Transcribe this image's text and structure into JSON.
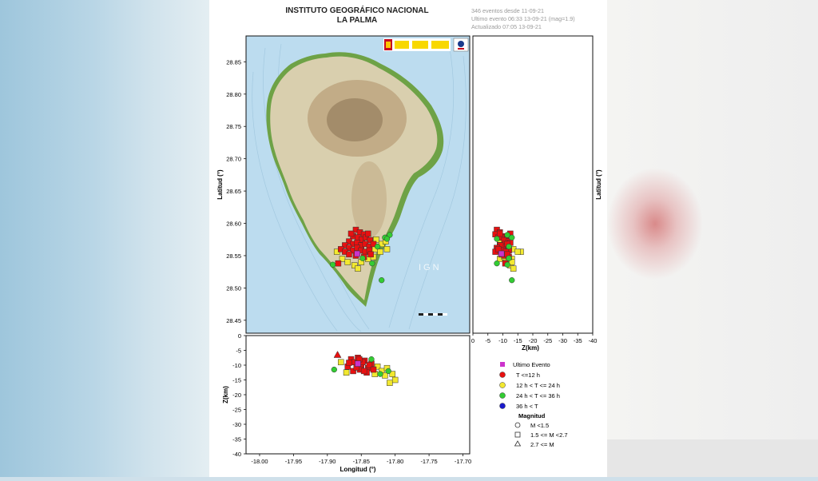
{
  "header": {
    "title_line1": "INSTITUTO GEOGRÁFICO NACIONAL",
    "title_line2": "LA PALMA",
    "info_line1": "346 eventos desde 11-09-21",
    "info_line2": "Ultimo evento 06:33 13-09-21  (mag=1.9)",
    "info_line3": "Actualizado   07:05  13-09-21"
  },
  "map": {
    "watermark": "IGN",
    "ocean_color": "#bcdcef",
    "land_color": "#d9cfae",
    "coast_color": "#6ea246"
  },
  "legend": {
    "ultimo_evento": "Ultimo Evento",
    "t1": "T <=12 h",
    "t2": "12 h  < T <= 24 h",
    "t3": "24 h  < T <= 36 h",
    "t4": "36 h <  T",
    "magnitud_title": "Magnitud",
    "m1": "M <1.5",
    "m2": "1.5 <= M <2.7",
    "m3": "2.7 <= M",
    "colors": {
      "ultimo": "#cc33cc",
      "t1": "#e81010",
      "t2": "#f2e830",
      "t3": "#33cc33",
      "t4": "#1a1acc"
    }
  },
  "chart_data": [
    {
      "type": "scatter",
      "name": "map",
      "xlabel": "",
      "ylabel": "Latitud (°)",
      "xlim": [
        -18.02,
        -17.69
      ],
      "ylim": [
        28.43,
        28.89
      ],
      "yticks": [
        "28.85",
        "28.80",
        "28.75",
        "28.70",
        "28.65",
        "28.60",
        "28.55",
        "28.50",
        "28.45"
      ],
      "ytick_values": [
        28.85,
        28.8,
        28.75,
        28.7,
        28.65,
        28.6,
        28.55,
        28.5,
        28.45
      ],
      "points_t1": [
        [
          -17.858,
          28.59
        ],
        [
          -17.852,
          28.586
        ],
        [
          -17.846,
          28.583
        ],
        [
          -17.862,
          28.58
        ],
        [
          -17.855,
          28.578
        ],
        [
          -17.849,
          28.575
        ],
        [
          -17.843,
          28.578
        ],
        [
          -17.837,
          28.574
        ],
        [
          -17.868,
          28.572
        ],
        [
          -17.862,
          28.568
        ],
        [
          -17.856,
          28.57
        ],
        [
          -17.85,
          28.566
        ],
        [
          -17.844,
          28.568
        ],
        [
          -17.838,
          28.564
        ],
        [
          -17.832,
          28.568
        ],
        [
          -17.874,
          28.566
        ],
        [
          -17.868,
          28.562
        ],
        [
          -17.862,
          28.558
        ],
        [
          -17.856,
          28.562
        ],
        [
          -17.85,
          28.558
        ],
        [
          -17.844,
          28.556
        ],
        [
          -17.838,
          28.558
        ],
        [
          -17.88,
          28.56
        ],
        [
          -17.874,
          28.556
        ],
        [
          -17.868,
          28.552
        ],
        [
          -17.858,
          28.55
        ],
        [
          -17.846,
          28.548
        ],
        [
          -17.836,
          28.552
        ],
        [
          -17.84,
          28.584
        ],
        [
          -17.865,
          28.584
        ],
        [
          -17.884,
          28.538
        ]
      ],
      "points_t2": [
        [
          -17.828,
          28.575
        ],
        [
          -17.82,
          28.568
        ],
        [
          -17.814,
          28.572
        ],
        [
          -17.83,
          28.56
        ],
        [
          -17.822,
          28.556
        ],
        [
          -17.886,
          28.556
        ],
        [
          -17.878,
          28.545
        ],
        [
          -17.87,
          28.54
        ],
        [
          -17.86,
          28.535
        ],
        [
          -17.85,
          28.54
        ],
        [
          -17.84,
          28.545
        ],
        [
          -17.832,
          28.548
        ],
        [
          -17.812,
          28.56
        ],
        [
          -17.855,
          28.53
        ]
      ],
      "points_t3": [
        [
          -17.808,
          28.582
        ],
        [
          -17.815,
          28.578
        ],
        [
          -17.826,
          28.564
        ],
        [
          -17.834,
          28.538
        ],
        [
          -17.892,
          28.536
        ],
        [
          -17.82,
          28.512
        ],
        [
          -17.848,
          28.546
        ],
        [
          -17.812,
          28.576
        ]
      ],
      "ultimo": [
        -17.856,
        28.553
      ]
    },
    {
      "type": "scatter",
      "name": "depth-vs-latitude",
      "xlabel": "Z(km)",
      "ylabel": "Latitud (°)",
      "xlim": [
        0,
        -40
      ],
      "xticks": [
        "0",
        "-5",
        "-10",
        "-15",
        "-20",
        "-25",
        "-30",
        "-35",
        "-40"
      ],
      "xtick_values": [
        0,
        -5,
        -10,
        -15,
        -20,
        -25,
        -30,
        -35,
        -40
      ]
    },
    {
      "type": "scatter",
      "name": "depth-vs-longitude",
      "xlabel": "Longitud (°)",
      "ylabel": "Z(km)",
      "xlim": [
        -18.02,
        -17.69
      ],
      "ylim": [
        0,
        -40
      ],
      "xticks": [
        "-18.00",
        "-17.95",
        "-17.90",
        "-17.85",
        "-17.80",
        "-17.75",
        "-17.70"
      ],
      "xtick_values": [
        -18.0,
        -17.95,
        -17.9,
        -17.85,
        -17.8,
        -17.75,
        -17.7
      ],
      "yticks": [
        "0",
        "-5",
        "-10",
        "-15",
        "-20",
        "-25",
        "-30",
        "-35",
        "-40"
      ],
      "ytick_values": [
        0,
        -5,
        -10,
        -15,
        -20,
        -25,
        -30,
        -35,
        -40
      ],
      "points_t1": [
        [
          -17.865,
          -8
        ],
        [
          -17.86,
          -9
        ],
        [
          -17.855,
          -7.5
        ],
        [
          -17.85,
          -10
        ],
        [
          -17.845,
          -8.5
        ],
        [
          -17.84,
          -11
        ],
        [
          -17.835,
          -9.5
        ],
        [
          -17.87,
          -10.5
        ],
        [
          -17.862,
          -12
        ],
        [
          -17.852,
          -11.5
        ],
        [
          -17.842,
          -12.5
        ],
        [
          -17.848,
          -9
        ],
        [
          -17.857,
          -10.8
        ],
        [
          -17.838,
          -10
        ],
        [
          -17.832,
          -11.5
        ],
        [
          -17.868,
          -9.2
        ],
        [
          -17.853,
          -8
        ],
        [
          -17.846,
          -12
        ]
      ],
      "points_t2": [
        [
          -17.88,
          -9
        ],
        [
          -17.826,
          -10.5
        ],
        [
          -17.82,
          -12
        ],
        [
          -17.815,
          -13.5
        ],
        [
          -17.808,
          -16
        ],
        [
          -17.8,
          -15
        ],
        [
          -17.804,
          -13
        ],
        [
          -17.812,
          -11
        ],
        [
          -17.872,
          -12.5
        ],
        [
          -17.83,
          -13
        ]
      ],
      "points_t3": [
        [
          -17.89,
          -11.5
        ],
        [
          -17.822,
          -13
        ],
        [
          -17.81,
          -12
        ],
        [
          -17.835,
          -8
        ]
      ],
      "triangles": [
        [
          -17.885,
          -6.5
        ]
      ],
      "ultimo": [
        -17.855,
        -9.5
      ]
    }
  ]
}
